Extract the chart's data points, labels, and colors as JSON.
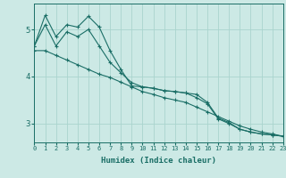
{
  "xlabel": "Humidex (Indice chaleur)",
  "ylabel": "",
  "bg_color": "#cce9e5",
  "grid_color": "#aad4ce",
  "line_color": "#1a6e66",
  "marker_color": "#1a6e66",
  "xlim": [
    0,
    23
  ],
  "ylim": [
    2.6,
    5.55
  ],
  "yticks": [
    3,
    4,
    5
  ],
  "xticks": [
    0,
    1,
    2,
    3,
    4,
    5,
    6,
    7,
    8,
    9,
    10,
    11,
    12,
    13,
    14,
    15,
    16,
    17,
    18,
    19,
    20,
    21,
    22,
    23
  ],
  "series": [
    {
      "x": [
        0,
        1,
        2,
        3,
        4,
        5,
        6,
        7,
        8,
        9,
        10,
        11,
        12,
        13,
        14,
        15,
        16,
        17,
        18,
        19,
        20,
        21,
        22,
        23
      ],
      "y": [
        4.65,
        5.3,
        4.85,
        5.1,
        5.05,
        5.28,
        5.05,
        4.55,
        4.15,
        3.8,
        3.78,
        3.75,
        3.7,
        3.68,
        3.65,
        3.62,
        3.45,
        3.12,
        3.02,
        2.88,
        2.82,
        2.78,
        2.76,
        2.73
      ]
    },
    {
      "x": [
        0,
        1,
        2,
        3,
        4,
        5,
        6,
        7,
        8,
        9,
        10,
        11,
        12,
        13,
        14,
        15,
        16,
        17,
        18,
        19,
        20,
        21,
        22,
        23
      ],
      "y": [
        4.65,
        5.1,
        4.65,
        4.95,
        4.85,
        5.0,
        4.65,
        4.3,
        4.08,
        3.87,
        3.78,
        3.75,
        3.7,
        3.68,
        3.65,
        3.55,
        3.42,
        3.1,
        3.0,
        2.88,
        2.82,
        2.78,
        2.76,
        2.73
      ]
    },
    {
      "x": [
        0,
        1,
        2,
        3,
        4,
        5,
        6,
        7,
        8,
        9,
        10,
        11,
        12,
        13,
        14,
        15,
        16,
        17,
        18,
        19,
        20,
        21,
        22,
        23
      ],
      "y": [
        4.55,
        4.55,
        4.45,
        4.35,
        4.25,
        4.15,
        4.05,
        3.98,
        3.88,
        3.78,
        3.68,
        3.62,
        3.55,
        3.5,
        3.45,
        3.35,
        3.25,
        3.15,
        3.05,
        2.95,
        2.88,
        2.82,
        2.78,
        2.73
      ]
    }
  ]
}
